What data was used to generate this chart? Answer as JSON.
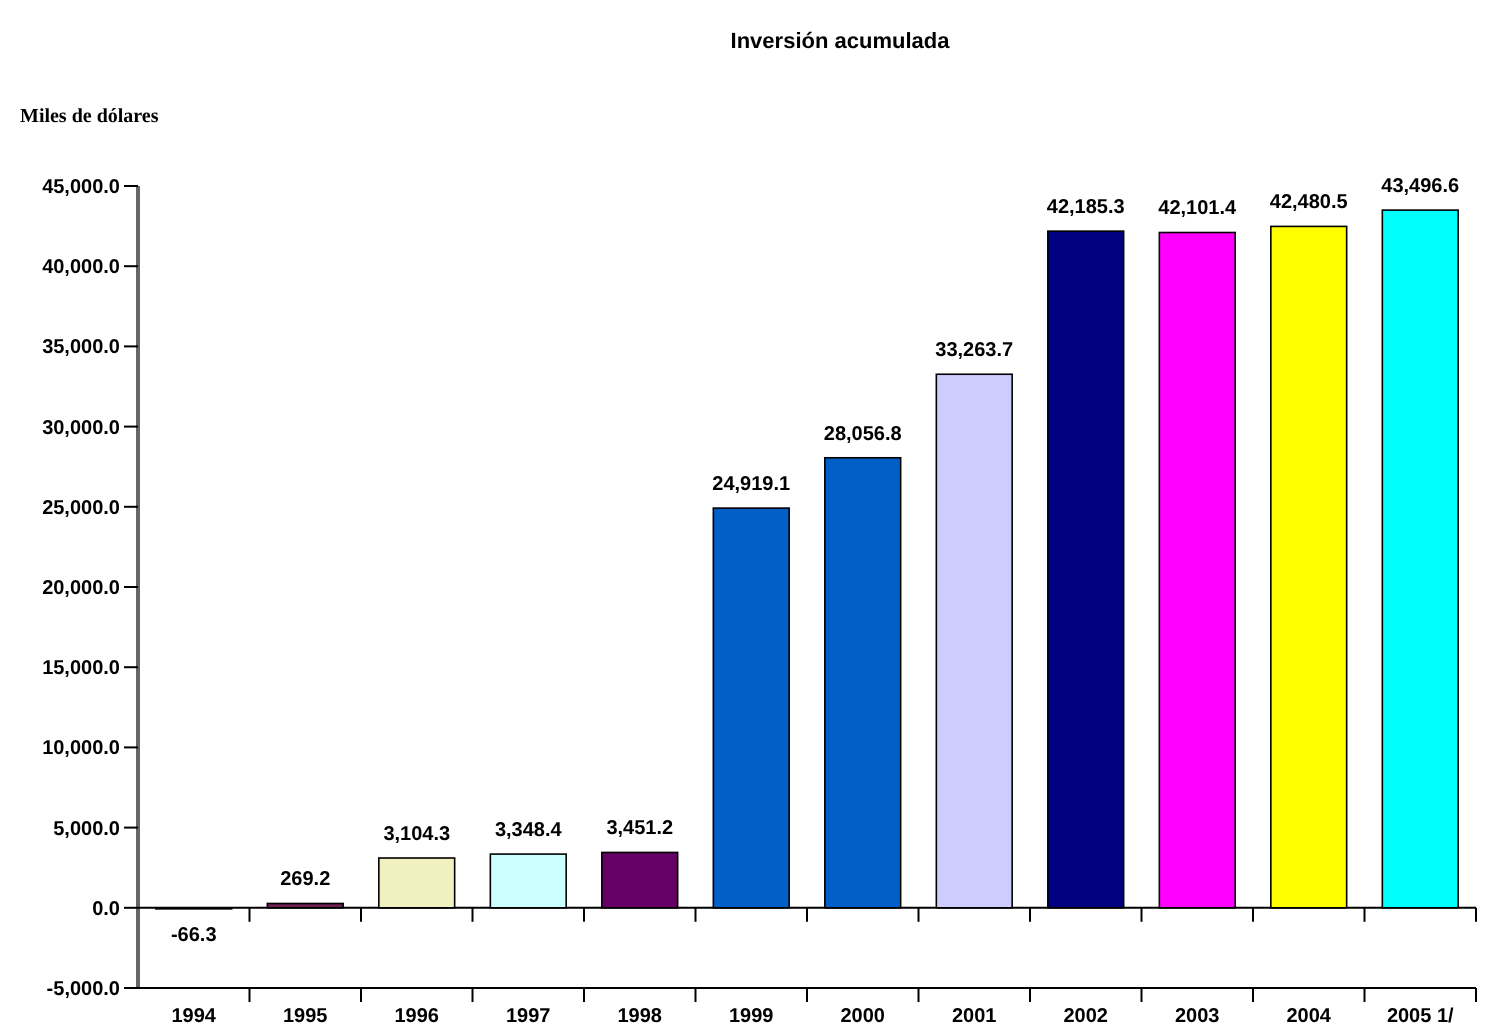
{
  "chart_data": {
    "type": "bar",
    "title": "Inversión acumulada",
    "ylabel": "Miles de dólares",
    "categories": [
      "1994",
      "1995",
      "1996",
      "1997",
      "1998",
      "1999",
      "2000",
      "2001",
      "2002",
      "2003",
      "2004",
      "2005 1/"
    ],
    "values": [
      -66.3,
      269.2,
      3104.3,
      3348.4,
      3451.2,
      24919.1,
      28056.8,
      33263.7,
      42185.3,
      42101.4,
      42480.5,
      43496.6
    ],
    "colors": [
      "#000000",
      "#6b2050",
      "#f0f0c0",
      "#ccffff",
      "#660066",
      "#0060c8",
      "#0060c8",
      "#ccccff",
      "#000080",
      "#ff00ff",
      "#ffff00",
      "#00ffff"
    ],
    "value_labels": [
      "-66.3",
      "269.2",
      "3,104.3",
      "3,348.4",
      "3,451.2",
      "24,919.1",
      "28,056.8",
      "33,263.7",
      "42,185.3",
      "42,101.4",
      "42,480.5",
      "43,496.6"
    ],
    "ylim": [
      -5000,
      45000
    ],
    "yticks": [
      {
        "value": -5000,
        "label": "-5,000.0"
      },
      {
        "value": 0,
        "label": "0.0"
      },
      {
        "value": 5000,
        "label": "5,000.0"
      },
      {
        "value": 10000,
        "label": "10,000.0"
      },
      {
        "value": 15000,
        "label": "15,000.0"
      },
      {
        "value": 20000,
        "label": "20,000.0"
      },
      {
        "value": 25000,
        "label": "25,000.0"
      },
      {
        "value": 30000,
        "label": "30,000.0"
      },
      {
        "value": 35000,
        "label": "35,000.0"
      },
      {
        "value": 40000,
        "label": "40,000.0"
      },
      {
        "value": 45000,
        "label": "45,000.0"
      }
    ]
  }
}
